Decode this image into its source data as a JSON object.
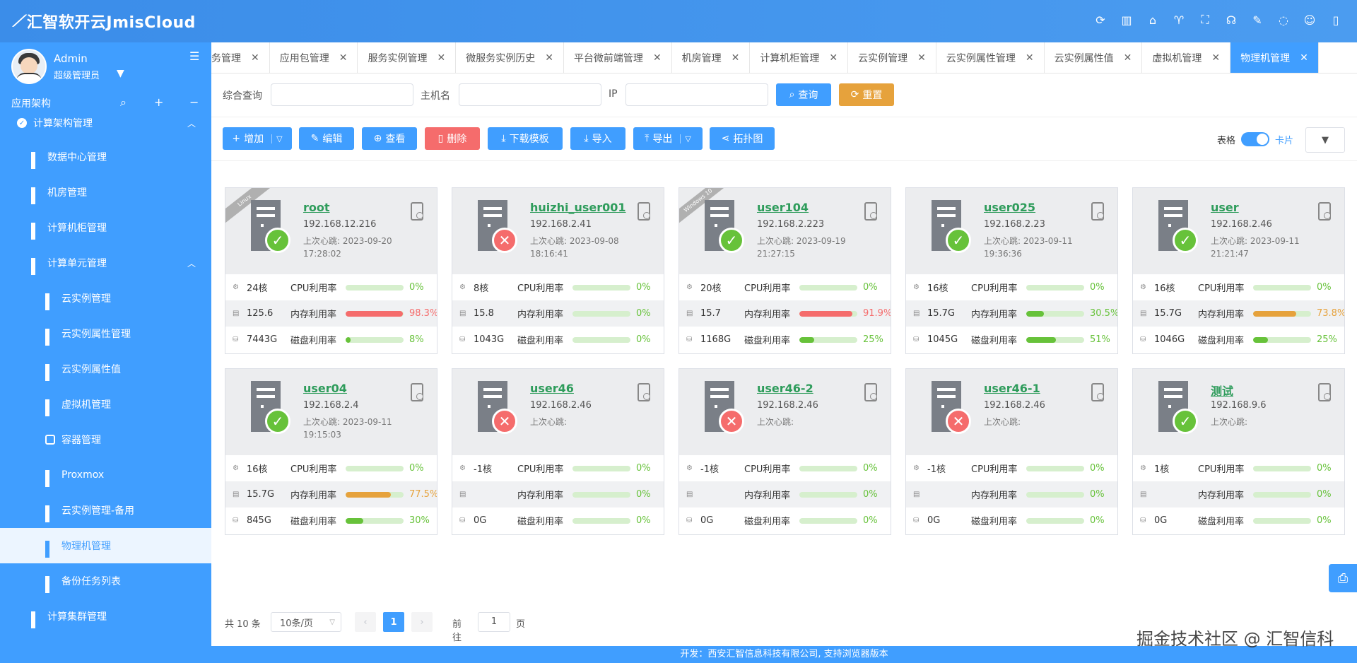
{
  "header": {
    "brand": "汇智软开云JmisCloud",
    "icons": [
      "refresh-icon",
      "building-icon",
      "home-icon",
      "shirt-icon",
      "fullscreen-icon",
      "headset-icon",
      "mic-off-icon",
      "chat-icon",
      "user-icon",
      "trash-icon"
    ]
  },
  "user": {
    "name": "Admin",
    "role": "超级管理员"
  },
  "sidebar": {
    "toolbar_label": "应用架构",
    "items": [
      {
        "label": "计算架构管理",
        "level": "top",
        "expanded": true
      },
      {
        "label": "数据中心管理",
        "level": "l1"
      },
      {
        "label": "机房管理",
        "level": "l1"
      },
      {
        "label": "计算机柜管理",
        "level": "l1"
      },
      {
        "label": "计算单元管理",
        "level": "l1",
        "expanded": true
      },
      {
        "label": "云实例管理",
        "level": "l2"
      },
      {
        "label": "云实例属性管理",
        "level": "l2"
      },
      {
        "label": "云实例属性值",
        "level": "l2"
      },
      {
        "label": "虚拟机管理",
        "level": "l2"
      },
      {
        "label": "容器管理",
        "level": "l2"
      },
      {
        "label": "Proxmox",
        "level": "l2"
      },
      {
        "label": "云实例管理-备用",
        "level": "l2"
      },
      {
        "label": "物理机管理",
        "level": "l2",
        "active": true
      },
      {
        "label": "备份任务列表",
        "level": "l2"
      },
      {
        "label": "计算集群管理",
        "level": "l1"
      }
    ]
  },
  "tabs": [
    {
      "label": "务管理"
    },
    {
      "label": "应用包管理"
    },
    {
      "label": "服务实例管理"
    },
    {
      "label": "微服务实例历史"
    },
    {
      "label": "平台微前端管理"
    },
    {
      "label": "机房管理"
    },
    {
      "label": "计算机柜管理"
    },
    {
      "label": "云实例管理"
    },
    {
      "label": "云实例属性管理"
    },
    {
      "label": "云实例属性值"
    },
    {
      "label": "虚拟机管理"
    },
    {
      "label": "物理机管理",
      "active": true
    }
  ],
  "search": {
    "general_label": "综合查询",
    "hostname_label": "主机名",
    "ip_label": "IP",
    "query_btn": "查询",
    "reset_btn": "重置"
  },
  "actions": {
    "add": "增加",
    "edit": "编辑",
    "view": "查看",
    "delete": "删除",
    "download_tpl": "下载模板",
    "import": "导入",
    "export": "导出",
    "topology": "拓扑图",
    "table_label": "表格",
    "card_label": "卡片"
  },
  "labels": {
    "heartbeat": "上次心跳:",
    "cpu": "CPU利用率",
    "mem": "内存利用率",
    "disk": "磁盘利用率"
  },
  "colors": {
    "primary": "#409eff",
    "ok": "#67c23a",
    "bad": "#f56c6c",
    "warn": "#e6a23c",
    "name": "#2e9c5b"
  },
  "cards": [
    {
      "name": "root",
      "ip": "192.168.12.216",
      "hb_date": "2023-09-20",
      "hb_time": "17:28:02",
      "status": "ok",
      "ribbon": "Linux",
      "cores": "24核",
      "mem": "125.6",
      "disk": "7443G",
      "cpu_pct": 0,
      "cpu_text": "0%",
      "mem_pct": 98.3,
      "mem_text": "98.3%",
      "disk_pct": 8,
      "disk_text": "8%"
    },
    {
      "name": "huizhi_user001",
      "ip": "192.168.2.41",
      "hb_date": "2023-09-08",
      "hb_time": "18:16:41",
      "status": "bad",
      "ribbon": "",
      "cores": "8核",
      "mem": "15.8",
      "disk": "1043G",
      "cpu_pct": 0,
      "cpu_text": "0%",
      "mem_pct": 0,
      "mem_text": "0%",
      "disk_pct": 0,
      "disk_text": "0%"
    },
    {
      "name": "user104",
      "ip": "192.168.2.223",
      "hb_date": "2023-09-19",
      "hb_time": "21:27:15",
      "status": "ok",
      "ribbon": "Windows 10",
      "cores": "20核",
      "mem": "15.7",
      "disk": "1168G",
      "cpu_pct": 0,
      "cpu_text": "0%",
      "mem_pct": 91.9,
      "mem_text": "91.9%",
      "disk_pct": 25,
      "disk_text": "25%"
    },
    {
      "name": "user025",
      "ip": "192.168.2.23",
      "hb_date": "2023-09-11",
      "hb_time": "19:36:36",
      "status": "ok",
      "ribbon": "",
      "cores": "16核",
      "mem": "15.7G",
      "disk": "1045G",
      "cpu_pct": 0,
      "cpu_text": "0%",
      "mem_pct": 30.5,
      "mem_text": "30.5%",
      "disk_pct": 51,
      "disk_text": "51%"
    },
    {
      "name": "user",
      "ip": "192.168.2.46",
      "hb_date": "2023-09-11",
      "hb_time": "21:21:47",
      "status": "ok",
      "ribbon": "",
      "cores": "16核",
      "mem": "15.7G",
      "disk": "1046G",
      "cpu_pct": 0,
      "cpu_text": "0%",
      "mem_pct": 73.8,
      "mem_text": "73.8%",
      "disk_pct": 25,
      "disk_text": "25%"
    },
    {
      "name": "user04",
      "ip": "192.168.2.4",
      "hb_date": "2023-09-11",
      "hb_time": "19:15:03",
      "status": "ok",
      "ribbon": "",
      "cores": "16核",
      "mem": "15.7G",
      "disk": "845G",
      "cpu_pct": 0,
      "cpu_text": "0%",
      "mem_pct": 77.5,
      "mem_text": "77.5%",
      "disk_pct": 30,
      "disk_text": "30%"
    },
    {
      "name": "user46",
      "ip": "192.168.2.46",
      "hb_date": "",
      "hb_time": "",
      "status": "bad",
      "ribbon": "",
      "cores": "-1核",
      "mem": "",
      "disk": "0G",
      "cpu_pct": 0,
      "cpu_text": "0%",
      "mem_pct": 0,
      "mem_text": "0%",
      "disk_pct": 0,
      "disk_text": "0%"
    },
    {
      "name": "user46-2",
      "ip": "192.168.2.46",
      "hb_date": "",
      "hb_time": "",
      "status": "bad",
      "ribbon": "",
      "cores": "-1核",
      "mem": "",
      "disk": "0G",
      "cpu_pct": 0,
      "cpu_text": "0%",
      "mem_pct": 0,
      "mem_text": "0%",
      "disk_pct": 0,
      "disk_text": "0%"
    },
    {
      "name": "user46-1",
      "ip": "192.168.2.46",
      "hb_date": "",
      "hb_time": "",
      "status": "bad",
      "ribbon": "",
      "cores": "-1核",
      "mem": "",
      "disk": "0G",
      "cpu_pct": 0,
      "cpu_text": "0%",
      "mem_pct": 0,
      "mem_text": "0%",
      "disk_pct": 0,
      "disk_text": "0%"
    },
    {
      "name": "测试",
      "ip": "192.168.9.6",
      "hb_date": "",
      "hb_time": "",
      "status": "ok",
      "ribbon": "",
      "cores": "1核",
      "mem": "",
      "disk": "0G",
      "cpu_pct": 0,
      "cpu_text": "0%",
      "mem_pct": 0,
      "mem_text": "0%",
      "disk_pct": 0,
      "disk_text": "0%"
    }
  ],
  "pager": {
    "total": "共 10 条",
    "page_size": "10条/页",
    "current": "1",
    "goto_label": "前往",
    "goto_value": "1",
    "unit": "页"
  },
  "footer": "开发：西安汇智信息科技有限公司, 支持浏览器版本",
  "watermark": "掘金技术社区 @ 汇智信科"
}
